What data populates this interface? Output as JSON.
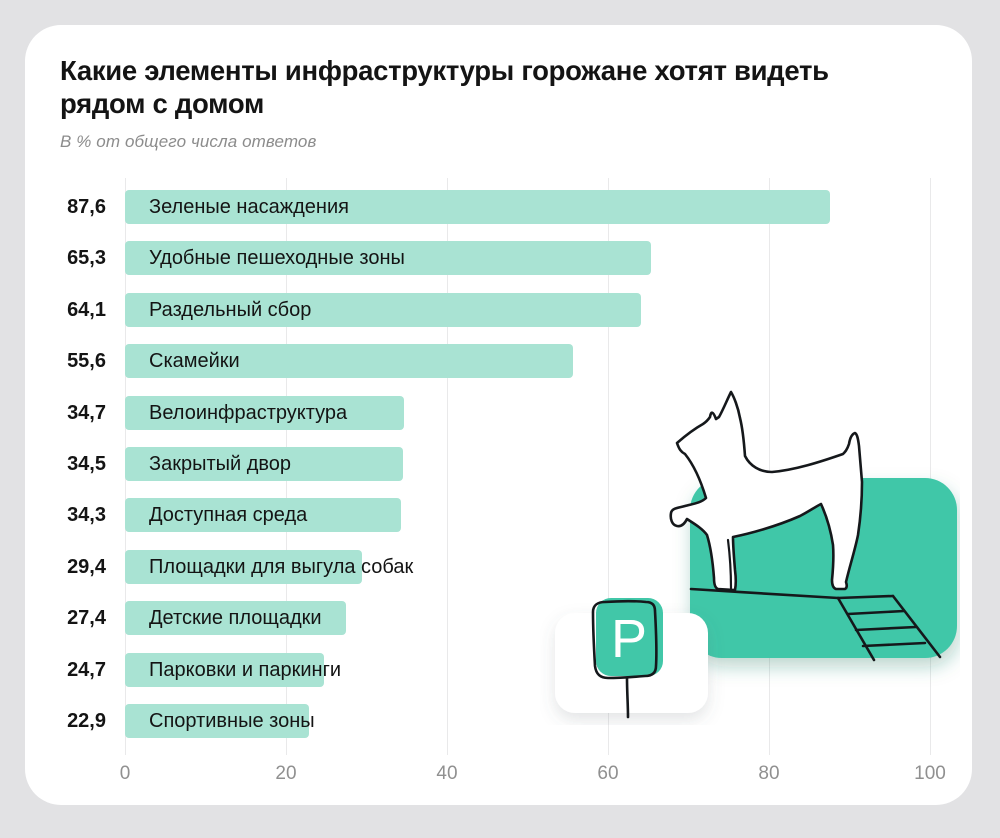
{
  "page": {
    "background_color": "#e2e2e4",
    "card_color": "#ffffff"
  },
  "header": {
    "title_line1": "Какие элементы инфраструктуры горожане хотят видеть",
    "title_line2": "рядом с домом",
    "subtitle": "В % от общего числа ответов"
  },
  "chart_data": {
    "type": "bar",
    "orientation": "horizontal",
    "title": "Какие элементы инфраструктуры горожане хотят видеть рядом с домом",
    "subtitle": "В % от общего числа ответов",
    "categories": [
      "Зеленые насаждения",
      "Удобные пешеходные зоны",
      "Раздельный сбор",
      "Скамейки",
      "Велоинфраструктура",
      "Закрытый двор",
      "Доступная среда",
      "Площадки для выгула собак",
      "Детские площадки",
      "Парковки и паркинги",
      "Спортивные зоны"
    ],
    "values": [
      87.6,
      65.3,
      64.1,
      55.6,
      34.7,
      34.5,
      34.3,
      29.4,
      27.4,
      24.7,
      22.9
    ],
    "value_labels": [
      "87,6",
      "65,3",
      "64,1",
      "55,6",
      "34,7",
      "34,5",
      "34,3",
      "29,4",
      "27,4",
      "24,7",
      "22,9"
    ],
    "xlim": [
      0,
      100
    ],
    "xticks": [
      "0",
      "20",
      "40",
      "60",
      "80",
      "100"
    ],
    "grid": true,
    "legend": false,
    "bar_color": "#a9e3d3",
    "value_color": "#141414",
    "tick_color": "#909090"
  },
  "illustration": {
    "name": "dog-on-agility-ramp-with-parking-sign",
    "accent_color": "#41c7a8",
    "line_color": "#15181b",
    "parking_letter": "P"
  }
}
